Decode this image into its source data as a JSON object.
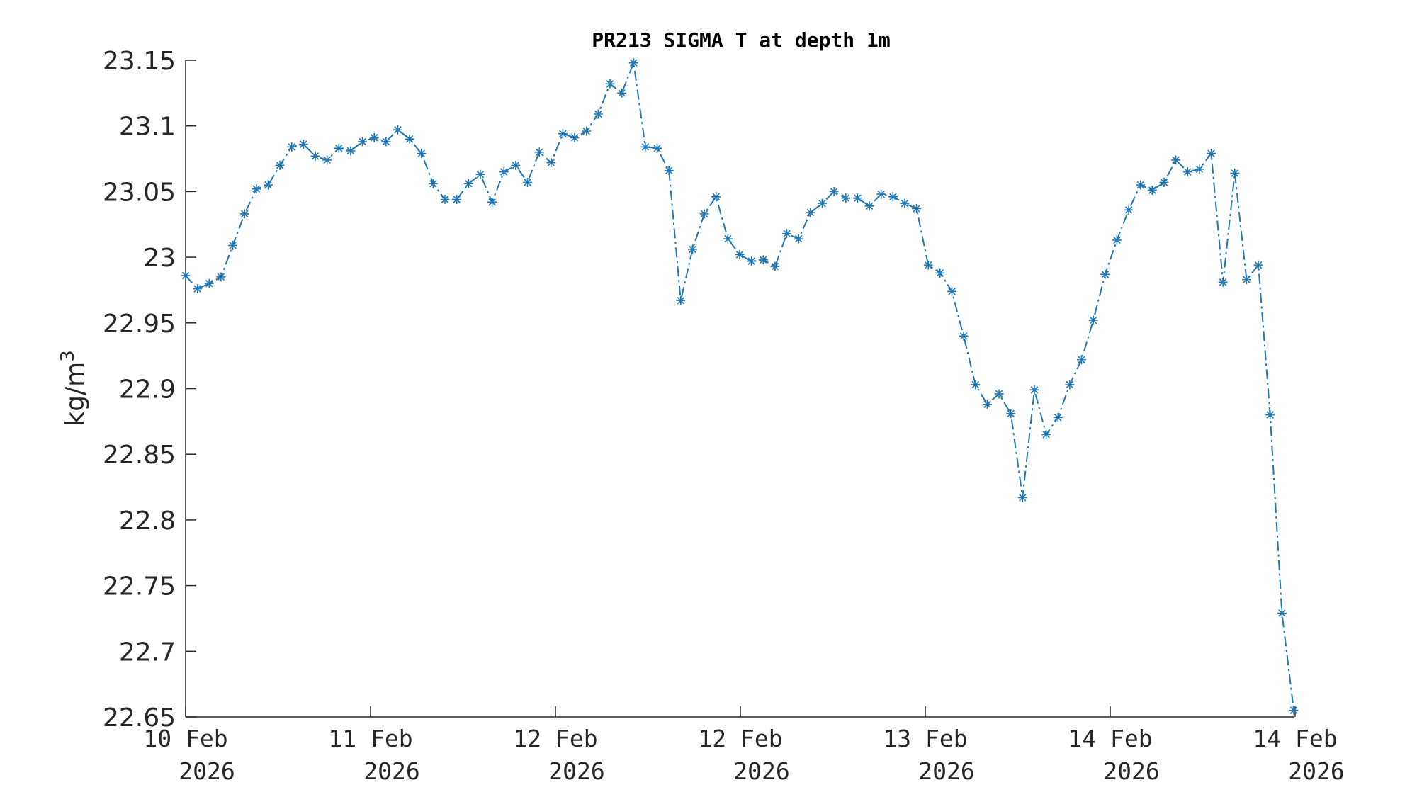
{
  "chart_data": {
    "type": "line",
    "title": "PR213 SIGMA T at depth 1m",
    "ylabel_base": "kg/m",
    "ylabel_sup": "3",
    "ylim": [
      22.65,
      23.15
    ],
    "yticks": [
      "23.15",
      "23.1",
      "23.05",
      "23",
      "22.95",
      "22.9",
      "22.85",
      "22.8",
      "22.75",
      "22.7",
      "22.65"
    ],
    "xticks": [
      {
        "day": "10 Feb",
        "year": "2026"
      },
      {
        "day": "11 Feb",
        "year": "2026"
      },
      {
        "day": "12 Feb",
        "year": "2026"
      },
      {
        "day": "12 Feb",
        "year": "2026"
      },
      {
        "day": "13 Feb",
        "year": "2026"
      },
      {
        "day": "14 Feb",
        "year": "2026"
      },
      {
        "day": "14 Feb",
        "year": "2026"
      }
    ],
    "color": "#1f77b4",
    "marker": "asterisk",
    "line_style": "dash-dot",
    "grid": false,
    "series": [
      {
        "values": [
          22.986,
          22.976,
          22.98,
          22.985,
          23.009,
          23.033,
          23.052,
          23.055,
          23.07,
          23.084,
          23.086,
          23.077,
          23.074,
          23.083,
          23.081,
          23.088,
          23.091,
          23.088,
          23.097,
          23.09,
          23.079,
          23.056,
          23.044,
          23.044,
          23.056,
          23.063,
          23.042,
          23.065,
          23.07,
          23.057,
          23.08,
          23.072,
          23.094,
          23.091,
          23.096,
          23.109,
          23.132,
          23.125,
          23.148,
          23.084,
          23.083,
          23.066,
          22.967,
          23.006,
          23.033,
          23.046,
          23.014,
          23.002,
          22.997,
          22.998,
          22.993,
          23.018,
          23.014,
          23.034,
          23.041,
          23.05,
          23.045,
          23.045,
          23.039,
          23.048,
          23.046,
          23.041,
          23.037,
          22.994,
          22.988,
          22.974,
          22.94,
          22.903,
          22.888,
          22.896,
          22.881,
          22.817,
          22.899,
          22.865,
          22.878,
          22.903,
          22.922,
          22.952,
          22.987,
          23.013,
          23.036,
          23.055,
          23.051,
          23.057,
          23.074,
          23.065,
          23.067,
          23.079,
          22.981,
          23.064,
          22.983,
          22.994,
          22.88,
          22.729,
          22.655
        ]
      }
    ]
  }
}
